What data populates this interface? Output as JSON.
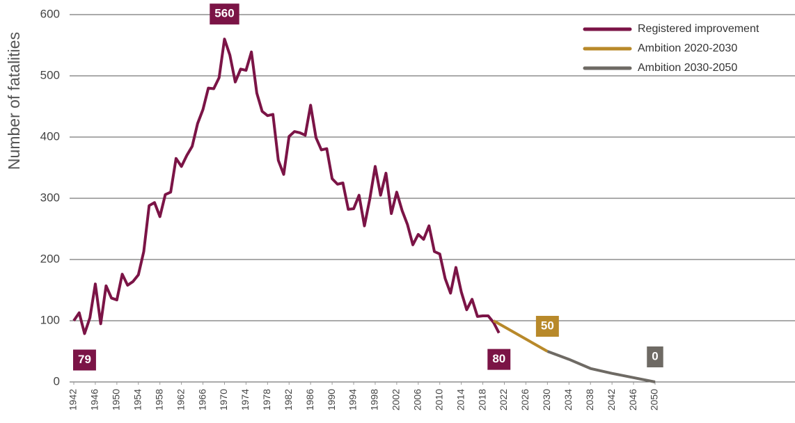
{
  "chart_data": {
    "type": "line",
    "y_label": "Number of fatalities",
    "xlim": [
      1942,
      2076
    ],
    "ylim": [
      0,
      600
    ],
    "xticks": [
      1942,
      1946,
      1950,
      1954,
      1958,
      1962,
      1966,
      1970,
      1974,
      1978,
      1982,
      1986,
      1990,
      1994,
      1998,
      2002,
      2006,
      2010,
      2014,
      2018,
      2022,
      2026,
      2030,
      2034,
      2038,
      2042,
      2046,
      2050
    ],
    "yticks": [
      0,
      100,
      200,
      300,
      400,
      500,
      600
    ],
    "grid": true,
    "legend": "upper right",
    "series": [
      {
        "name": "Registered improvement",
        "color": "#7b1446",
        "x": [
          1942,
          1943,
          1944,
          1945,
          1946,
          1947,
          1948,
          1949,
          1950,
          1951,
          1952,
          1953,
          1954,
          1955,
          1956,
          1957,
          1958,
          1959,
          1960,
          1961,
          1962,
          1963,
          1964,
          1965,
          1966,
          1967,
          1968,
          1969,
          1970,
          1971,
          1972,
          1973,
          1974,
          1975,
          1976,
          1977,
          1978,
          1979,
          1980,
          1981,
          1982,
          1983,
          1984,
          1985,
          1986,
          1987,
          1988,
          1989,
          1990,
          1991,
          1992,
          1993,
          1994,
          1995,
          1996,
          1997,
          1998,
          1999,
          2000,
          2001,
          2002,
          2003,
          2004,
          2005,
          2006,
          2007,
          2008,
          2009,
          2010,
          2011,
          2012,
          2013,
          2014,
          2015,
          2016,
          2017,
          2018,
          2019,
          2020,
          2021
        ],
        "values": [
          100,
          113,
          79,
          105,
          160,
          95,
          157,
          137,
          134,
          176,
          158,
          164,
          175,
          213,
          288,
          293,
          270,
          306,
          310,
          365,
          352,
          370,
          385,
          422,
          445,
          480,
          479,
          497,
          560,
          534,
          490,
          511,
          509,
          539,
          472,
          442,
          435,
          437,
          362,
          339,
          401,
          409,
          407,
          403,
          452,
          399,
          379,
          381,
          332,
          323,
          325,
          282,
          283,
          305,
          255,
          299,
          352,
          305,
          341,
          275,
          310,
          280,
          257,
          224,
          241,
          233,
          255,
          213,
          209,
          169,
          145,
          187,
          147,
          118,
          135,
          107,
          108,
          108,
          97,
          80
        ],
        "label_x": [
          1944,
          1970,
          2021
        ]
      },
      {
        "name": "Ambition 2020-2030",
        "color": "#b8892a",
        "x": [
          2020,
          2030
        ],
        "values": [
          100,
          50
        ],
        "label_x": [
          2030
        ]
      },
      {
        "name": "Ambition 2030-2050",
        "color": "#6e6a64",
        "x": [
          2030,
          2034,
          2038,
          2042,
          2046,
          2050
        ],
        "values": [
          50,
          37,
          22,
          14,
          7,
          0
        ],
        "label_x": [
          2050
        ]
      }
    ]
  }
}
